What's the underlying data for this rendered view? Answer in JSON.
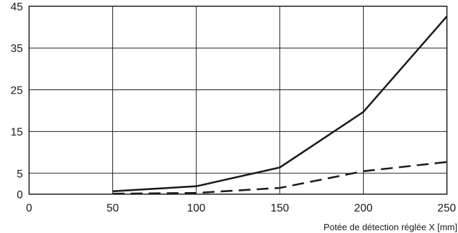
{
  "chart_data": {
    "type": "line",
    "xlabel": "Potée de détection réglée X [mm]",
    "ylabel": "",
    "title": "",
    "xlim": [
      0,
      250
    ],
    "ylim": [
      0,
      45
    ],
    "x_ticks": [
      0,
      50,
      100,
      150,
      200,
      250
    ],
    "y_ticks": [
      0,
      5,
      15,
      25,
      35,
      45
    ],
    "grid": true,
    "legend": "none",
    "series": [
      {
        "style": "solid",
        "color": "#1a1a1a",
        "x": [
          50,
          100,
          150,
          200,
          250
        ],
        "y": [
          0.7,
          1.9,
          6.4,
          19.7,
          42.6
        ]
      },
      {
        "style": "dashed",
        "color": "#1a1a1a",
        "x": [
          50,
          100,
          150,
          200,
          250
        ],
        "y": [
          0.1,
          0.3,
          1.5,
          5.5,
          7.7
        ]
      }
    ]
  }
}
